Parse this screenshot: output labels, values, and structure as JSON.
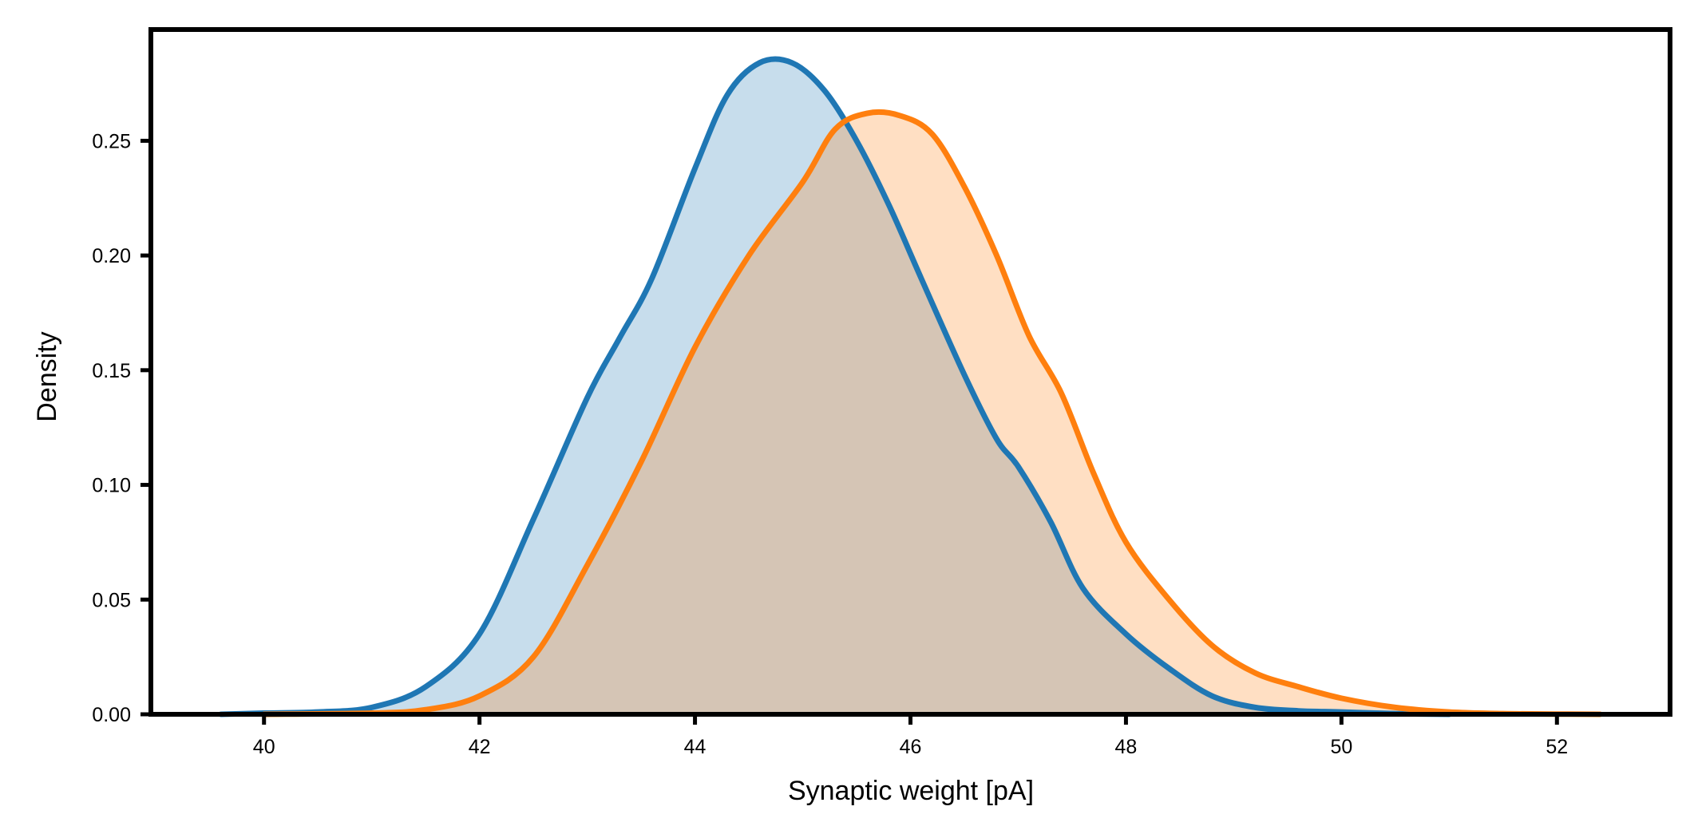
{
  "chart_data": {
    "type": "area",
    "title": "",
    "xlabel": "Synaptic weight [pA]",
    "ylabel": "Density",
    "xlim": [
      38.95,
      53.05
    ],
    "ylim": [
      0,
      0.2985
    ],
    "xticks": [
      40,
      42,
      44,
      46,
      48,
      50,
      52
    ],
    "xtick_labels": [
      "40",
      "42",
      "44",
      "46",
      "48",
      "50",
      "52"
    ],
    "yticks": [
      0,
      0.05,
      0.1,
      0.15,
      0.2,
      0.25
    ],
    "ytick_labels": [
      "0.00",
      "0.05",
      "0.10",
      "0.15",
      "0.20",
      "0.25"
    ],
    "grid": false,
    "legend": "none",
    "series": [
      {
        "color": "#1f77b4",
        "x": [
          39.6,
          40.0,
          40.5,
          41.0,
          41.5,
          42.0,
          42.5,
          43.0,
          43.3,
          43.6,
          44.0,
          44.3,
          44.6,
          44.9,
          45.2,
          45.5,
          45.8,
          46.1,
          46.5,
          46.8,
          47.0,
          47.3,
          47.6,
          48.0,
          48.4,
          48.8,
          49.2,
          49.6,
          50.0,
          50.5,
          51.0
        ],
        "y": [
          0.0,
          0.0005,
          0.001,
          0.003,
          0.012,
          0.035,
          0.085,
          0.138,
          0.164,
          0.19,
          0.238,
          0.27,
          0.284,
          0.284,
          0.272,
          0.25,
          0.222,
          0.19,
          0.148,
          0.12,
          0.108,
          0.084,
          0.055,
          0.035,
          0.02,
          0.008,
          0.003,
          0.0015,
          0.001,
          0.0003,
          0.0
        ]
      },
      {
        "color": "#ff7f0e",
        "x": [
          40.0,
          41.0,
          41.5,
          42.0,
          42.5,
          43.0,
          43.5,
          44.0,
          44.5,
          45.0,
          45.3,
          45.6,
          45.9,
          46.2,
          46.5,
          46.8,
          47.1,
          47.4,
          47.7,
          48.0,
          48.4,
          48.8,
          49.2,
          49.6,
          50.0,
          50.5,
          51.0,
          51.5,
          52.0,
          52.4
        ],
        "y": [
          0.0,
          0.0005,
          0.002,
          0.008,
          0.025,
          0.065,
          0.11,
          0.16,
          0.2,
          0.232,
          0.255,
          0.262,
          0.261,
          0.253,
          0.23,
          0.2,
          0.165,
          0.14,
          0.105,
          0.075,
          0.05,
          0.03,
          0.018,
          0.012,
          0.007,
          0.003,
          0.001,
          0.0003,
          0.0001,
          0.0
        ]
      }
    ]
  }
}
